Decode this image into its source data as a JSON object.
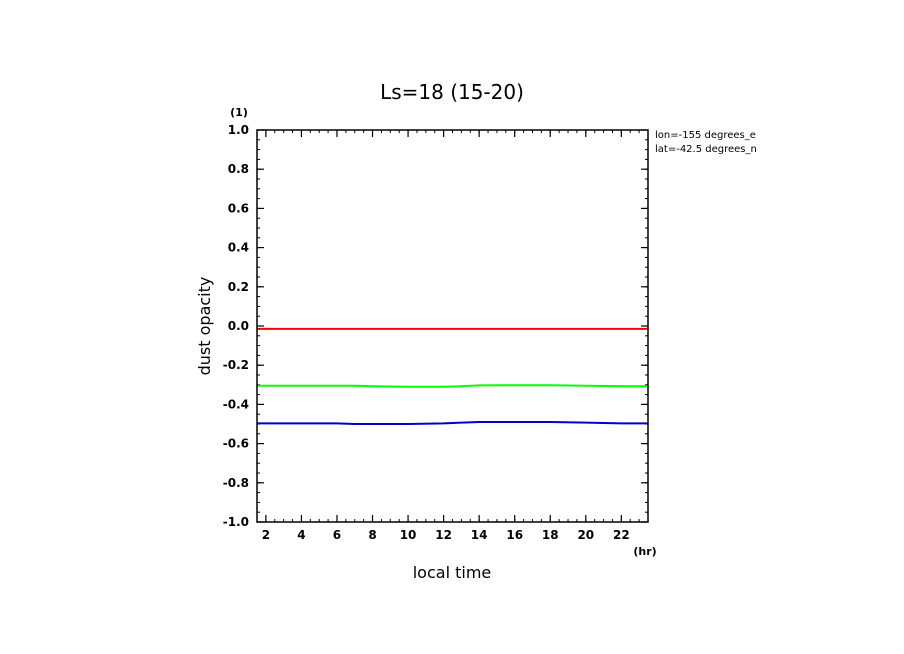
{
  "chart_data": {
    "type": "line",
    "title": "Ls=18 (15-20)",
    "xlabel": "local time",
    "ylabel": "dust opacity",
    "x_unit": "(hr)",
    "y_unit": "(1)",
    "xlim": [
      1.5,
      23.5
    ],
    "ylim": [
      -1.0,
      1.0
    ],
    "x_ticks": [
      2,
      4,
      6,
      8,
      10,
      12,
      14,
      16,
      18,
      20,
      22
    ],
    "y_ticks": [
      -1.0,
      -0.8,
      -0.6,
      -0.4,
      -0.2,
      0.0,
      0.2,
      0.4,
      0.6,
      0.8,
      1.0
    ],
    "y_tick_labels": [
      "-1.0",
      "-0.8",
      "-0.6",
      "-0.4",
      "-0.2",
      "0.0",
      "0.2",
      "0.4",
      "0.6",
      "0.8",
      "1.0"
    ],
    "x": [
      1.5,
      2,
      4,
      6,
      7,
      8,
      10,
      12,
      13,
      14,
      16,
      18,
      20,
      22,
      23.5
    ],
    "series": [
      {
        "color": "#ff0000",
        "values": [
          -0.015,
          -0.015,
          -0.015,
          -0.015,
          -0.015,
          -0.015,
          -0.015,
          -0.015,
          -0.015,
          -0.015,
          -0.015,
          -0.015,
          -0.015,
          -0.015,
          -0.015
        ]
      },
      {
        "color": "#00ff00",
        "values": [
          -0.305,
          -0.305,
          -0.305,
          -0.305,
          -0.305,
          -0.307,
          -0.31,
          -0.31,
          -0.307,
          -0.303,
          -0.302,
          -0.302,
          -0.305,
          -0.307,
          -0.307
        ]
      },
      {
        "color": "#0000cc",
        "values": [
          -0.497,
          -0.497,
          -0.497,
          -0.497,
          -0.5,
          -0.5,
          -0.5,
          -0.497,
          -0.493,
          -0.49,
          -0.49,
          -0.49,
          -0.493,
          -0.497,
          -0.497
        ]
      }
    ],
    "grid": false,
    "annotations": [
      "lon=-155 degrees_e",
      "lat=-42.5 degrees_n"
    ]
  }
}
